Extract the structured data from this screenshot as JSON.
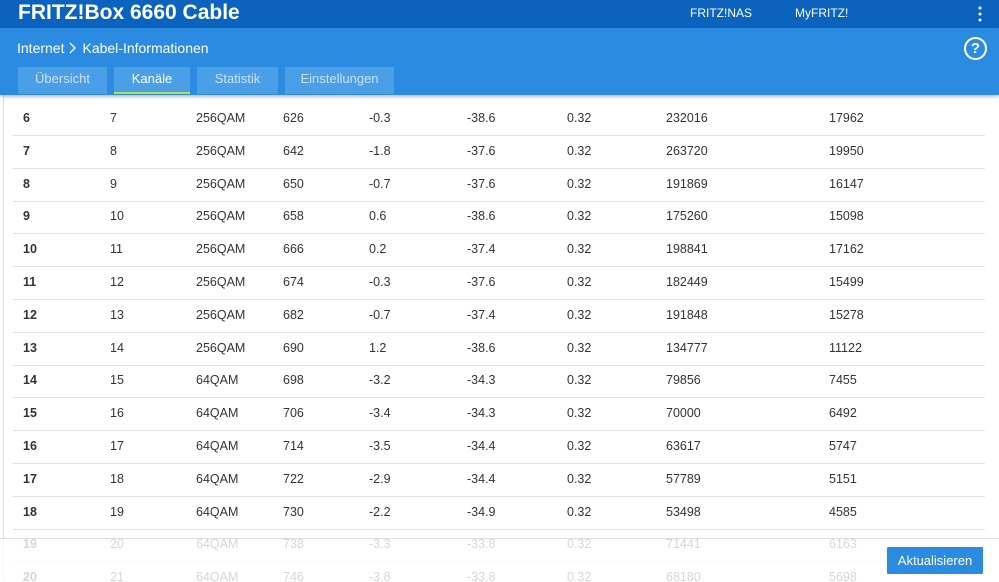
{
  "header": {
    "title": "FRITZ!Box 6660 Cable",
    "links": [
      "FRITZ!NAS",
      "MyFRITZ!"
    ]
  },
  "breadcrumb": [
    "Internet",
    "Kabel-Informationen"
  ],
  "help": "?",
  "tabs": [
    "Übersicht",
    "Kanäle",
    "Statistik",
    "Einstellungen"
  ],
  "active_tab": 1,
  "table": {
    "rows": [
      [
        "6",
        "7",
        "256QAM",
        "626",
        "-0.3",
        "-38.6",
        "0.32",
        "232016",
        "17962"
      ],
      [
        "7",
        "8",
        "256QAM",
        "642",
        "-1.8",
        "-37.6",
        "0.32",
        "263720",
        "19950"
      ],
      [
        "8",
        "9",
        "256QAM",
        "650",
        "-0.7",
        "-37.6",
        "0.32",
        "191869",
        "16147"
      ],
      [
        "9",
        "10",
        "256QAM",
        "658",
        "0.6",
        "-38.6",
        "0.32",
        "175260",
        "15098"
      ],
      [
        "10",
        "11",
        "256QAM",
        "666",
        "0.2",
        "-37.4",
        "0.32",
        "198841",
        "17162"
      ],
      [
        "11",
        "12",
        "256QAM",
        "674",
        "-0.3",
        "-37.6",
        "0.32",
        "182449",
        "15499"
      ],
      [
        "12",
        "13",
        "256QAM",
        "682",
        "-0.7",
        "-37.4",
        "0.32",
        "191848",
        "15278"
      ],
      [
        "13",
        "14",
        "256QAM",
        "690",
        "1.2",
        "-38.6",
        "0.32",
        "134777",
        "11122"
      ],
      [
        "14",
        "15",
        "64QAM",
        "698",
        "-3.2",
        "-34.3",
        "0.32",
        "79856",
        "7455"
      ],
      [
        "15",
        "16",
        "64QAM",
        "706",
        "-3.4",
        "-34.3",
        "0.32",
        "70000",
        "6492"
      ],
      [
        "16",
        "17",
        "64QAM",
        "714",
        "-3.5",
        "-34.4",
        "0.32",
        "63617",
        "5747"
      ],
      [
        "17",
        "18",
        "64QAM",
        "722",
        "-2.9",
        "-34.4",
        "0.32",
        "57789",
        "5151"
      ],
      [
        "18",
        "19",
        "64QAM",
        "730",
        "-2.2",
        "-34.9",
        "0.32",
        "53498",
        "4585"
      ],
      [
        "19",
        "20",
        "64QAM",
        "738",
        "-3.3",
        "-33.8",
        "0.32",
        "71441",
        "6163"
      ],
      [
        "20",
        "21",
        "64QAM",
        "746",
        "-3.8",
        "-33.8",
        "0.32",
        "68180",
        "5698"
      ]
    ]
  },
  "button": "Aktualisieren"
}
